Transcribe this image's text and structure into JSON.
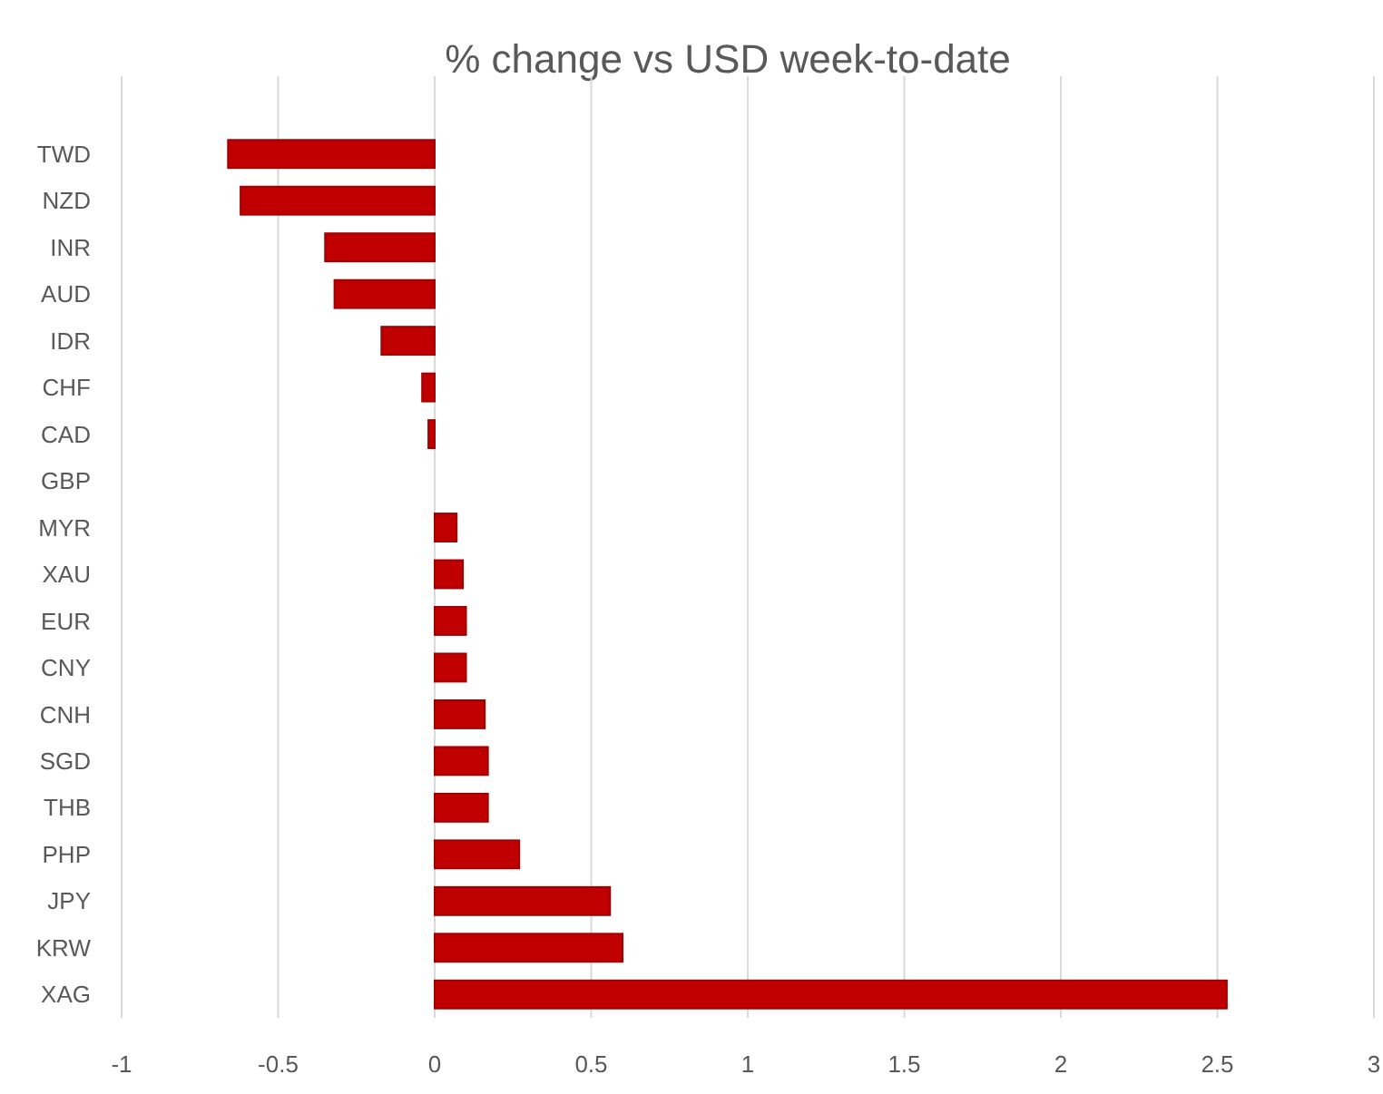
{
  "chart_data": {
    "type": "bar",
    "orientation": "horizontal",
    "title": "% change vs USD week-to-date",
    "categories": [
      "TWD",
      "NZD",
      "INR",
      "AUD",
      "IDR",
      "CHF",
      "CAD",
      "GBP",
      "MYR",
      "XAU",
      "EUR",
      "CNY",
      "CNH",
      "SGD",
      "THB",
      "PHP",
      "JPY",
      "KRW",
      "XAG"
    ],
    "values": [
      -0.66,
      -0.62,
      -0.35,
      -0.32,
      -0.17,
      -0.04,
      -0.02,
      0,
      0.07,
      0.09,
      0.1,
      0.1,
      0.16,
      0.17,
      0.17,
      0.27,
      0.56,
      0.6,
      2.53
    ],
    "color": "#c00000",
    "xlim": [
      -1,
      3
    ],
    "xticks": [
      -1,
      -0.5,
      0,
      0.5,
      1,
      1.5,
      2,
      2.5,
      3
    ],
    "grid": "x"
  }
}
